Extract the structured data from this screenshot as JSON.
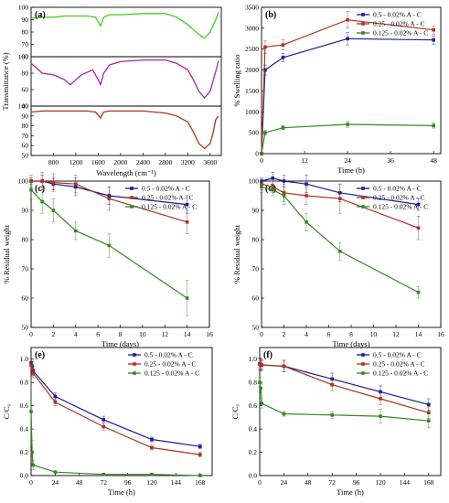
{
  "chart_data": [
    {
      "panel": "(a)",
      "type": "line",
      "xlabel": "Wavelength (cm⁻¹)",
      "ylabel": "Transmittance (%)",
      "xlim": [
        400,
        3800
      ],
      "xticks": [
        800,
        1200,
        1600,
        2000,
        2400,
        2800,
        3200,
        3600
      ],
      "sub_axes": [
        {
          "ylim": [
            60,
            100
          ],
          "yticks": [
            60,
            70,
            80,
            90,
            100
          ],
          "color": "#44cc22",
          "x": [
            400,
            600,
            800,
            1000,
            1200,
            1400,
            1550,
            1640,
            1700,
            1800,
            2000,
            2400,
            2800,
            3000,
            3200,
            3300,
            3400,
            3500,
            3600,
            3700,
            3750
          ],
          "y": [
            91,
            92,
            92,
            93,
            93,
            93,
            92,
            85,
            92,
            94,
            94,
            95,
            95,
            92,
            86,
            82,
            78,
            75,
            80,
            90,
            96
          ]
        },
        {
          "ylim": [
            40,
            100
          ],
          "yticks": [
            40,
            60,
            80,
            100
          ],
          "color": "#aa22aa",
          "x": [
            400,
            500,
            600,
            800,
            1000,
            1100,
            1300,
            1500,
            1600,
            1640,
            1700,
            1800,
            2000,
            2400,
            2800,
            3000,
            3200,
            3300,
            3400,
            3500,
            3600,
            3700,
            3750
          ],
          "y": [
            92,
            86,
            80,
            78,
            72,
            66,
            78,
            84,
            72,
            66,
            80,
            90,
            94,
            96,
            96,
            92,
            84,
            72,
            58,
            50,
            58,
            82,
            95
          ]
        },
        {
          "ylim": [
            50,
            100
          ],
          "yticks": [
            50,
            60,
            70,
            80,
            90,
            100
          ],
          "color": "#aa3322",
          "x": [
            400,
            600,
            800,
            1000,
            1200,
            1400,
            1550,
            1640,
            1700,
            1800,
            2000,
            2400,
            2800,
            3000,
            3200,
            3300,
            3400,
            3500,
            3600,
            3650,
            3700,
            3750
          ],
          "y": [
            94,
            95,
            95,
            95,
            95,
            95,
            94,
            88,
            94,
            95,
            95,
            95,
            93,
            90,
            84,
            74,
            62,
            57,
            62,
            72,
            86,
            90
          ]
        }
      ]
    },
    {
      "panel": "(b)",
      "type": "line",
      "xlabel": "Time (h)",
      "ylabel": "% Swelling ratio",
      "xlim": [
        0,
        50
      ],
      "ylim": [
        0,
        3500
      ],
      "xticks": [
        0,
        12,
        24,
        36,
        48
      ],
      "yticks": [
        0,
        500,
        1000,
        1500,
        2000,
        2500,
        3000,
        3500
      ],
      "x": [
        0,
        1,
        6,
        24,
        48
      ],
      "series": [
        {
          "name": "0.5 - 0.02% A - C",
          "color": "#1a1a99",
          "values": [
            0,
            2000,
            2300,
            2750,
            2720
          ],
          "errors": [
            0,
            120,
            100,
            150,
            100
          ]
        },
        {
          "name": "0.25 - 0.02% A - C",
          "color": "#aa3322",
          "values": [
            0,
            2550,
            2600,
            3200,
            2960
          ],
          "errors": [
            0,
            150,
            120,
            200,
            100
          ]
        },
        {
          "name": "0.125 - 0.02% A - C",
          "color": "#338822",
          "values": [
            0,
            500,
            620,
            700,
            670
          ],
          "errors": [
            0,
            60,
            50,
            70,
            60
          ]
        }
      ]
    },
    {
      "panel": "(c)",
      "type": "line",
      "xlabel": "Time (days)",
      "ylabel": "% Residual weight",
      "xlim": [
        0,
        16
      ],
      "ylim": [
        50,
        100
      ],
      "xticks": [
        0,
        2,
        4,
        6,
        8,
        10,
        12,
        14,
        16
      ],
      "yticks": [
        50,
        60,
        70,
        80,
        90,
        100
      ],
      "x": [
        0,
        1,
        2,
        4,
        7,
        14
      ],
      "series": [
        {
          "name": "0.5 - 0.02% A - C",
          "color": "#1a1a99",
          "values": [
            100,
            100,
            99,
            98,
            95,
            92
          ],
          "errors": [
            1,
            2,
            2,
            3,
            3,
            3
          ]
        },
        {
          "name": "0.25 - 0.02% A - C",
          "color": "#aa3322",
          "values": [
            100,
            100,
            99.5,
            99,
            94,
            86
          ],
          "errors": [
            2,
            3,
            3,
            3,
            4,
            4
          ]
        },
        {
          "name": "0.125 - 0.02% A - C",
          "color": "#338822",
          "values": [
            97,
            93,
            90,
            83,
            78,
            60
          ],
          "errors": [
            3,
            4,
            4,
            3,
            4,
            6
          ]
        }
      ]
    },
    {
      "panel": "(d)",
      "type": "line",
      "xlabel": "Time (days)",
      "ylabel": "% Residual weight",
      "xlim": [
        0,
        16
      ],
      "ylim": [
        50,
        100
      ],
      "xticks": [
        0,
        2,
        4,
        6,
        8,
        10,
        12,
        14,
        16
      ],
      "yticks": [
        50,
        60,
        70,
        80,
        90,
        100
      ],
      "x": [
        0,
        1,
        2,
        4,
        7,
        14
      ],
      "series": [
        {
          "name": "0.5 - 0.02% A - C",
          "color": "#1a1a99",
          "values": [
            100,
            101,
            100,
            99,
            96,
            92
          ],
          "errors": [
            1,
            2,
            2,
            3,
            3,
            2
          ]
        },
        {
          "name": "0.25 - 0.02% A - C",
          "color": "#aa3322",
          "values": [
            99,
            98,
            96,
            95,
            94,
            84
          ],
          "errors": [
            2,
            2,
            3,
            3,
            5,
            4
          ]
        },
        {
          "name": "0.125 - 0.02% A - C",
          "color": "#338822",
          "values": [
            98,
            97,
            95,
            86,
            76,
            62
          ],
          "errors": [
            2,
            2,
            3,
            3,
            3,
            2
          ]
        }
      ]
    },
    {
      "panel": "(e)",
      "type": "line",
      "xlabel": "Time (h)",
      "ylabel": "C/C₀",
      "xlim": [
        0,
        180
      ],
      "ylim": [
        0,
        1.1
      ],
      "xticks": [
        0,
        24,
        48,
        72,
        96,
        120,
        144,
        168
      ],
      "yticks": [
        0.0,
        0.2,
        0.4,
        0.6,
        0.8,
        1.0
      ],
      "x": [
        0,
        1,
        2,
        24,
        72,
        120,
        168
      ],
      "series": [
        {
          "name": "0.5 - 0.02% A - C",
          "color": "#1a1a99",
          "values": [
            0.97,
            0.94,
            0.9,
            0.68,
            0.48,
            0.31,
            0.25
          ],
          "errors": [
            0.03,
            0.04,
            0.04,
            0.03,
            0.03,
            0.02,
            0.02
          ]
        },
        {
          "name": "0.25 - 0.02% A - C",
          "color": "#aa3322",
          "values": [
            0.95,
            0.92,
            0.88,
            0.63,
            0.42,
            0.24,
            0.18
          ],
          "errors": [
            0.03,
            0.04,
            0.04,
            0.03,
            0.03,
            0.02,
            0.02
          ]
        },
        {
          "name": "0.125 - 0.02% A - C",
          "color": "#338822",
          "values": [
            0.55,
            0.2,
            0.09,
            0.03,
            0.01,
            0.01,
            0.0
          ],
          "errors": [
            0.3,
            0.1,
            0.04,
            0.01,
            0.01,
            0.01,
            0.01
          ]
        }
      ]
    },
    {
      "panel": "(f)",
      "type": "line",
      "xlabel": "Time (h)",
      "ylabel": "C/C₀",
      "xlim": [
        0,
        180
      ],
      "ylim": [
        0,
        1.1
      ],
      "xticks": [
        0,
        24,
        48,
        72,
        96,
        120,
        144,
        168
      ],
      "yticks": [
        0.0,
        0.2,
        0.4,
        0.6,
        0.8,
        1.0
      ],
      "x": [
        0,
        1,
        2,
        24,
        72,
        120,
        168
      ],
      "series": [
        {
          "name": "0.5 - 0.02% A - C",
          "color": "#1a1a99",
          "values": [
            0.96,
            0.95,
            0.95,
            0.94,
            0.83,
            0.72,
            0.61
          ],
          "errors": [
            0.05,
            0.05,
            0.04,
            0.05,
            0.05,
            0.05,
            0.05
          ]
        },
        {
          "name": "0.25 - 0.02% A - C",
          "color": "#aa3322",
          "values": [
            0.96,
            0.95,
            0.95,
            0.94,
            0.78,
            0.66,
            0.54
          ],
          "errors": [
            0.05,
            0.05,
            0.04,
            0.05,
            0.05,
            0.05,
            0.05
          ]
        },
        {
          "name": "0.125 - 0.02% A - C",
          "color": "#338822",
          "values": [
            0.8,
            0.75,
            0.62,
            0.53,
            0.52,
            0.51,
            0.47
          ],
          "errors": [
            0.04,
            0.04,
            0.04,
            0.02,
            0.03,
            0.06,
            0.06
          ]
        }
      ]
    }
  ]
}
